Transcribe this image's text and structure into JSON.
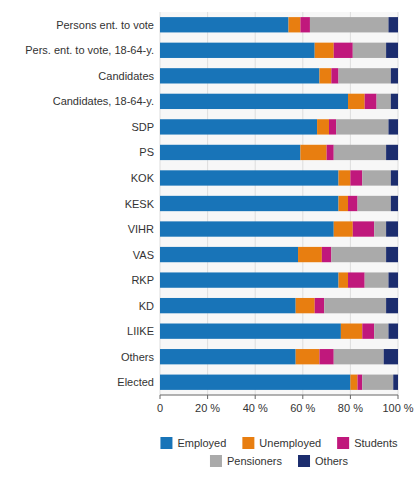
{
  "chart_data": {
    "type": "bar",
    "orientation": "horizontal",
    "stacked": true,
    "categories": [
      "Persons ent. to vote",
      "Pers. ent. to vote, 18-64-y.",
      "Candidates",
      "Candidates, 18-64-y.",
      "SDP",
      "PS",
      "KOK",
      "KESK",
      "VIHR",
      "VAS",
      "RKP",
      "KD",
      "LIIKE",
      "Others",
      "Elected"
    ],
    "series": [
      {
        "name": "Employed",
        "color": "#1874b8",
        "values": [
          54,
          65,
          67,
          79,
          66,
          59,
          75,
          75,
          73,
          58,
          75,
          57,
          76,
          57,
          80
        ]
      },
      {
        "name": "Unemployed",
        "color": "#e87e10",
        "values": [
          5,
          8,
          5,
          7,
          5,
          11,
          5,
          4,
          8,
          10,
          4,
          8,
          9,
          10,
          3
        ]
      },
      {
        "name": "Students",
        "color": "#c0187c",
        "values": [
          4,
          8,
          3,
          5,
          3,
          3,
          5,
          4,
          9,
          4,
          7,
          4,
          5,
          6,
          2
        ]
      },
      {
        "name": "Pensioners",
        "color": "#aaaaaa",
        "values": [
          33,
          14,
          22,
          6,
          22,
          22,
          12,
          14,
          5,
          23,
          10,
          26,
          6,
          21,
          13
        ]
      },
      {
        "name": "Others",
        "color": "#1c2d6e",
        "values": [
          4,
          5,
          3,
          3,
          4,
          5,
          3,
          3,
          5,
          5,
          4,
          5,
          4,
          6,
          2
        ]
      }
    ],
    "xlim": [
      0,
      100
    ],
    "xticks": [
      0,
      {
        "value": 20,
        "label": "20 %"
      },
      {
        "value": 40,
        "label": "40 %"
      },
      {
        "value": 60,
        "label": "60 %"
      },
      {
        "value": 80,
        "label": "80 %"
      },
      {
        "value": 100,
        "label": "100 %"
      }
    ],
    "grid": true,
    "legend": "bottom"
  }
}
